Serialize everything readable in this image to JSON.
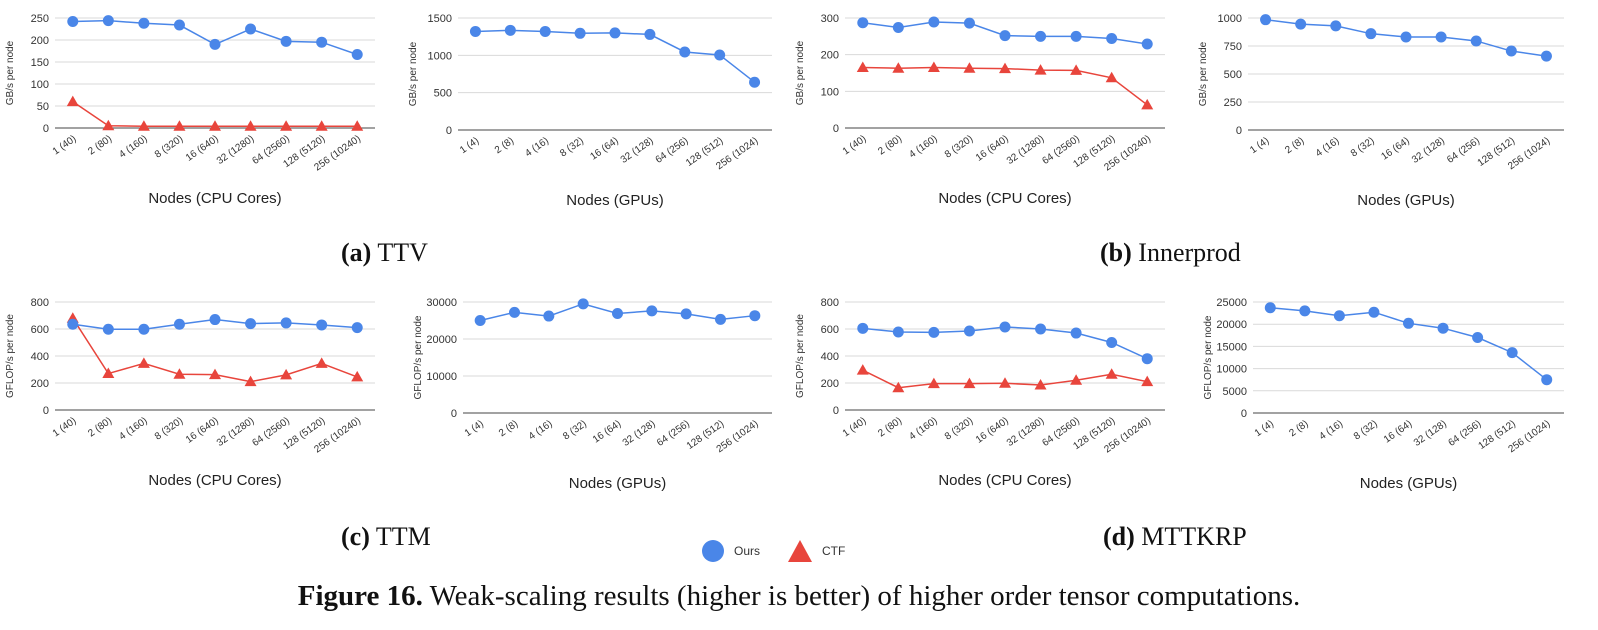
{
  "colors": {
    "ours": "#4a86e8",
    "ctf": "#e8453c",
    "grid": "#d9d9d9",
    "axis": "#444444",
    "text": "#333333"
  },
  "legend": [
    {
      "label": "Ours",
      "shape": "circle",
      "color": "#4a86e8"
    },
    {
      "label": "CTF",
      "shape": "triangle",
      "color": "#e8453c"
    }
  ],
  "captions": {
    "a": {
      "letter": "(a)",
      "text": "TTV"
    },
    "b": {
      "letter": "(b)",
      "text": "Innerprod"
    },
    "c": {
      "letter": "(c)",
      "text": "TTM"
    },
    "d": {
      "letter": "(d)",
      "text": "MTTKRP"
    }
  },
  "figure_caption": {
    "label": "Figure 16.",
    "text": "Weak-scaling results (higher is better) of higher order tensor computations."
  },
  "chart_data": [
    {
      "type": "line",
      "ylabel": "GB/s per node",
      "xlabel": "Nodes (CPU Cores)",
      "categories": [
        "1 (40)",
        "2 (80)",
        "4 (160)",
        "8 (320)",
        "16 (640)",
        "32 (1280)",
        "64 (2560)",
        "128 (5120)",
        "256 (10240)"
      ],
      "ylim": [
        0,
        250
      ],
      "yticks": [
        0,
        50,
        100,
        150,
        200,
        250
      ],
      "grid": true,
      "series": [
        {
          "name": "Ours",
          "color": "#4a86e8",
          "marker": "circle",
          "values": [
            242,
            244,
            238,
            234,
            190,
            225,
            197,
            195,
            167
          ]
        },
        {
          "name": "CTF",
          "color": "#e8453c",
          "marker": "triangle",
          "values": [
            60,
            5,
            4,
            4,
            4,
            4,
            4,
            4,
            4
          ]
        }
      ]
    },
    {
      "type": "line",
      "ylabel": "GB/s per node",
      "xlabel": "Nodes (GPUs)",
      "categories": [
        "1 (4)",
        "2 (8)",
        "4 (16)",
        "8 (32)",
        "16 (64)",
        "32 (128)",
        "64 (256)",
        "128 (512)",
        "256 (1024)"
      ],
      "ylim": [
        0,
        1500
      ],
      "yticks": [
        0,
        500,
        1000,
        1500
      ],
      "grid": true,
      "series": [
        {
          "name": "Ours",
          "color": "#4a86e8",
          "marker": "circle",
          "values": [
            1320,
            1335,
            1320,
            1295,
            1300,
            1280,
            1045,
            1005,
            640
          ]
        }
      ]
    },
    {
      "type": "line",
      "ylabel": "GB/s per node",
      "xlabel": "Nodes (CPU Cores)",
      "categories": [
        "1 (40)",
        "2 (80)",
        "4 (160)",
        "8 (320)",
        "16 (640)",
        "32 (1280)",
        "64 (2560)",
        "128 (5120)",
        "256 (10240)"
      ],
      "ylim": [
        0,
        300
      ],
      "yticks": [
        0,
        100,
        200,
        300
      ],
      "grid": true,
      "series": [
        {
          "name": "Ours",
          "color": "#4a86e8",
          "marker": "circle",
          "values": [
            287,
            274,
            289,
            286,
            252,
            250,
            250,
            244,
            229
          ]
        },
        {
          "name": "CTF",
          "color": "#e8453c",
          "marker": "triangle",
          "values": [
            165,
            163,
            165,
            163,
            162,
            158,
            157,
            137,
            63
          ]
        }
      ]
    },
    {
      "type": "line",
      "ylabel": "GB/s per node",
      "xlabel": "Nodes (GPUs)",
      "categories": [
        "1 (4)",
        "2 (8)",
        "4 (16)",
        "8 (32)",
        "16 (64)",
        "32 (128)",
        "64 (256)",
        "128 (512)",
        "256 (1024)"
      ],
      "ylim": [
        0,
        1000
      ],
      "yticks": [
        0,
        250,
        500,
        750,
        1000
      ],
      "grid": true,
      "series": [
        {
          "name": "Ours",
          "color": "#4a86e8",
          "marker": "circle",
          "values": [
            985,
            945,
            930,
            860,
            830,
            830,
            795,
            705,
            660
          ]
        }
      ]
    },
    {
      "type": "line",
      "ylabel": "GFLOP/s per node",
      "xlabel": "Nodes (CPU Cores)",
      "categories": [
        "1 (40)",
        "2 (80)",
        "4 (160)",
        "8 (320)",
        "16 (640)",
        "32 (1280)",
        "64 (2560)",
        "128 (5120)",
        "256 (10240)"
      ],
      "ylim": [
        0,
        800
      ],
      "yticks": [
        0,
        200,
        400,
        600,
        800
      ],
      "grid": true,
      "series": [
        {
          "name": "Ours",
          "color": "#4a86e8",
          "marker": "circle",
          "values": [
            635,
            598,
            598,
            635,
            670,
            640,
            645,
            630,
            610
          ]
        },
        {
          "name": "CTF",
          "color": "#e8453c",
          "marker": "triangle",
          "values": [
            680,
            270,
            345,
            265,
            262,
            210,
            260,
            345,
            245
          ]
        }
      ]
    },
    {
      "type": "line",
      "ylabel": "GFLOP/s per node",
      "xlabel": "Nodes (GPUs)",
      "categories": [
        "1 (4)",
        "2 (8)",
        "4 (16)",
        "8 (32)",
        "16 (64)",
        "32 (128)",
        "64 (256)",
        "128 (512)",
        "256 (1024)"
      ],
      "ylim": [
        0,
        30000
      ],
      "yticks": [
        0,
        10000,
        20000,
        30000
      ],
      "grid": true,
      "series": [
        {
          "name": "Ours",
          "color": "#4a86e8",
          "marker": "circle",
          "values": [
            25000,
            27200,
            26200,
            29500,
            26900,
            27600,
            26800,
            25300,
            26300
          ]
        }
      ]
    },
    {
      "type": "line",
      "ylabel": "GFLOP/s per node",
      "xlabel": "Nodes (CPU Cores)",
      "categories": [
        "1 (40)",
        "2 (80)",
        "4 (160)",
        "8 (320)",
        "16 (640)",
        "32 (1280)",
        "64 (2560)",
        "128 (5120)",
        "256 (10240)"
      ],
      "ylim": [
        0,
        800
      ],
      "yticks": [
        0,
        200,
        400,
        600,
        800
      ],
      "grid": true,
      "series": [
        {
          "name": "Ours",
          "color": "#4a86e8",
          "marker": "circle",
          "values": [
            605,
            578,
            575,
            585,
            615,
            600,
            570,
            500,
            380
          ]
        },
        {
          "name": "CTF",
          "color": "#e8453c",
          "marker": "triangle",
          "values": [
            295,
            165,
            195,
            195,
            198,
            185,
            220,
            265,
            210
          ]
        }
      ]
    },
    {
      "type": "line",
      "ylabel": "GFLOP/s per node",
      "xlabel": "Nodes (GPUs)",
      "categories": [
        "1 (4)",
        "2 (8)",
        "4 (16)",
        "8 (32)",
        "16 (64)",
        "32 (128)",
        "64 (256)",
        "128 (512)",
        "256 (1024)"
      ],
      "ylim": [
        0,
        25000
      ],
      "yticks": [
        0,
        5000,
        10000,
        15000,
        20000,
        25000
      ],
      "grid": true,
      "series": [
        {
          "name": "Ours",
          "color": "#4a86e8",
          "marker": "circle",
          "values": [
            23700,
            23000,
            21900,
            22700,
            20200,
            19100,
            17000,
            13600,
            7500
          ]
        }
      ]
    }
  ]
}
